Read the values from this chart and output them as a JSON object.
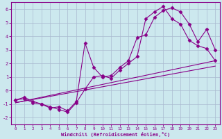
{
  "xlabel": "Windchill (Refroidissement éolien,°C)",
  "bg_color": "#cce8ee",
  "grid_color": "#aabbd0",
  "line_color": "#880088",
  "xlim": [
    -0.5,
    23.5
  ],
  "ylim": [
    -2.5,
    6.5
  ],
  "xticks": [
    0,
    1,
    2,
    3,
    4,
    5,
    6,
    7,
    8,
    9,
    10,
    11,
    12,
    13,
    14,
    15,
    16,
    17,
    18,
    19,
    20,
    21,
    22,
    23
  ],
  "yticks": [
    -2,
    -1,
    0,
    1,
    2,
    3,
    4,
    5,
    6
  ],
  "series1_x": [
    0,
    1,
    2,
    3,
    4,
    5,
    6,
    7,
    8,
    9,
    10,
    11,
    12,
    13,
    14,
    15,
    16,
    17,
    18,
    19,
    20,
    21,
    22,
    23
  ],
  "series1_y": [
    -0.7,
    -0.6,
    -0.9,
    -1.0,
    -1.3,
    -1.2,
    -1.5,
    -0.8,
    3.5,
    1.7,
    1.0,
    1.1,
    1.7,
    2.2,
    3.9,
    4.1,
    5.4,
    5.9,
    6.1,
    5.8,
    4.9,
    3.6,
    4.5,
    3.0
  ],
  "series2_x": [
    0,
    1,
    2,
    3,
    4,
    5,
    6,
    7,
    8,
    9,
    10,
    11,
    12,
    13,
    14,
    15,
    16,
    17,
    18,
    19,
    20,
    21,
    22,
    23
  ],
  "series2_y": [
    -0.7,
    -0.5,
    -0.8,
    -1.0,
    -1.2,
    -1.4,
    -1.6,
    -0.9,
    0.1,
    1.0,
    1.1,
    0.9,
    1.5,
    2.0,
    2.5,
    5.3,
    5.8,
    6.2,
    5.3,
    4.9,
    3.7,
    3.3,
    3.1,
    2.2
  ],
  "trend1_x": [
    0,
    23
  ],
  "trend1_y": [
    -0.9,
    2.2
  ],
  "trend2_x": [
    0,
    23
  ],
  "trend2_y": [
    -0.9,
    1.8
  ]
}
